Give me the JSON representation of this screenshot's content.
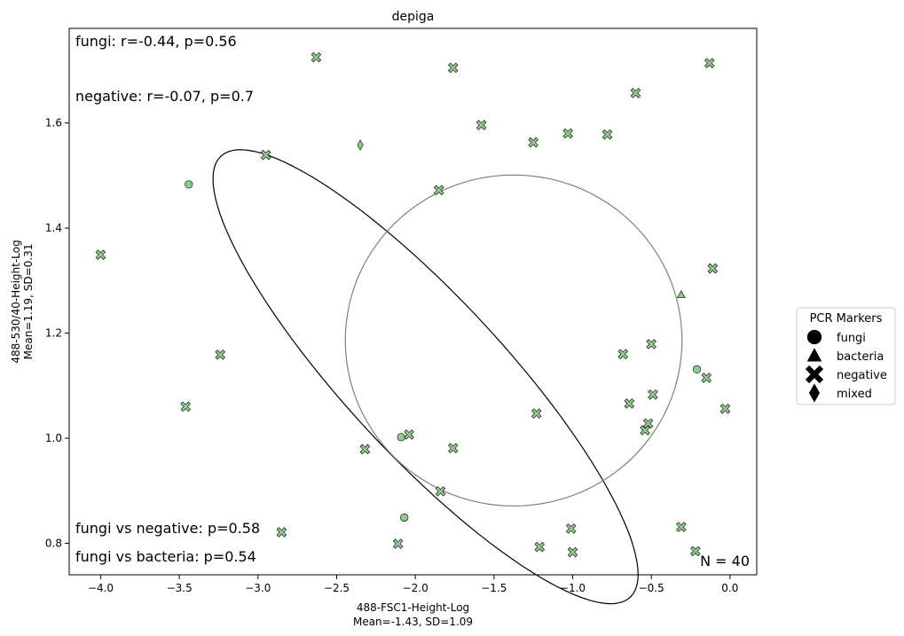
{
  "chart_data": {
    "type": "scatter",
    "title": "depiga",
    "xlabel": "488-FSC1-Height-Log",
    "xlabel_stats": "Mean=-1.43, SD=1.09",
    "ylabel": "488-530/40-Height-Log",
    "ylabel_stats": "Mean=1.19, SD=0.31",
    "xlim": [
      -4.2,
      0.17
    ],
    "ylim": [
      0.74,
      1.78
    ],
    "xticks": [
      -4.0,
      -3.5,
      -3.0,
      -2.5,
      -2.0,
      -1.5,
      -1.0,
      -0.5,
      0.0
    ],
    "xtick_labels": [
      "−4.0",
      "−3.5",
      "−3.0",
      "−2.5",
      "−2.0",
      "−1.5",
      "−1.0",
      "−0.5",
      "0.0"
    ],
    "yticks": [
      0.8,
      1.0,
      1.2,
      1.4,
      1.6
    ],
    "ytick_labels": [
      "0.8",
      "1.0",
      "1.2",
      "1.4",
      "1.6"
    ],
    "grid": false,
    "marker_color": "#8fc98b",
    "series": [
      {
        "name": "fungi",
        "marker": "circle",
        "points": [
          [
            -3.44,
            1.483
          ],
          [
            -2.09,
            1.002
          ],
          [
            -2.07,
            0.849
          ],
          [
            -0.21,
            1.131
          ]
        ]
      },
      {
        "name": "bacteria",
        "marker": "triangle",
        "points": [
          [
            -0.31,
            1.273
          ]
        ]
      },
      {
        "name": "negative",
        "marker": "x",
        "points": [
          [
            -2.63,
            1.725
          ],
          [
            -1.76,
            1.705
          ],
          [
            -0.13,
            1.714
          ],
          [
            -0.6,
            1.657
          ],
          [
            -1.58,
            1.596
          ],
          [
            -1.25,
            1.563
          ],
          [
            -1.03,
            1.58
          ],
          [
            -0.78,
            1.578
          ],
          [
            -2.95,
            1.539
          ],
          [
            -1.85,
            1.472
          ],
          [
            -4.0,
            1.349
          ],
          [
            -0.11,
            1.323
          ],
          [
            -3.24,
            1.159
          ],
          [
            -0.68,
            1.16
          ],
          [
            -0.5,
            1.179
          ],
          [
            -0.15,
            1.115
          ],
          [
            -3.46,
            1.06
          ],
          [
            -0.64,
            1.066
          ],
          [
            -0.49,
            1.083
          ],
          [
            -0.03,
            1.056
          ],
          [
            -1.23,
            1.047
          ],
          [
            -0.52,
            1.028
          ],
          [
            -0.54,
            1.015
          ],
          [
            -2.04,
            1.007
          ],
          [
            -2.32,
            0.979
          ],
          [
            -1.76,
            0.981
          ],
          [
            -1.84,
            0.899
          ],
          [
            -2.85,
            0.821
          ],
          [
            -1.01,
            0.828
          ],
          [
            -0.31,
            0.831
          ],
          [
            -2.11,
            0.799
          ],
          [
            -1.21,
            0.793
          ],
          [
            -1.0,
            0.783
          ],
          [
            -0.22,
            0.785
          ]
        ]
      },
      {
        "name": "mixed",
        "marker": "diamond",
        "points": [
          [
            -2.35,
            1.558
          ]
        ]
      }
    ],
    "ellipses": [
      {
        "group": "fungi",
        "color": "#000000",
        "center": [
          -1.935,
          1.117
        ],
        "u_axis": [
          1.32,
          -0.413
        ],
        "v_axis": [
          -0.288,
          -0.127
        ]
      },
      {
        "group": "negative",
        "color": "#808080",
        "center": [
          -1.375,
          1.186
        ],
        "u_axis": [
          1.07,
          0.0
        ],
        "v_axis": [
          0.0,
          0.315
        ]
      }
    ],
    "legend": {
      "title": "PCR Markers",
      "placement": "outside-right",
      "items": [
        {
          "label": "fungi",
          "marker": "circle"
        },
        {
          "label": "bacteria",
          "marker": "triangle"
        },
        {
          "label": "negative",
          "marker": "x"
        },
        {
          "label": "mixed",
          "marker": "diamond"
        }
      ]
    },
    "annotations": {
      "top": [
        "fungi: r=-0.44, p=0.56",
        "negative: r=-0.07, p=0.7"
      ],
      "bottom": [
        "fungi vs negative: p=0.58",
        "fungi vs bacteria: p=0.54"
      ],
      "count": "N = 40"
    }
  }
}
